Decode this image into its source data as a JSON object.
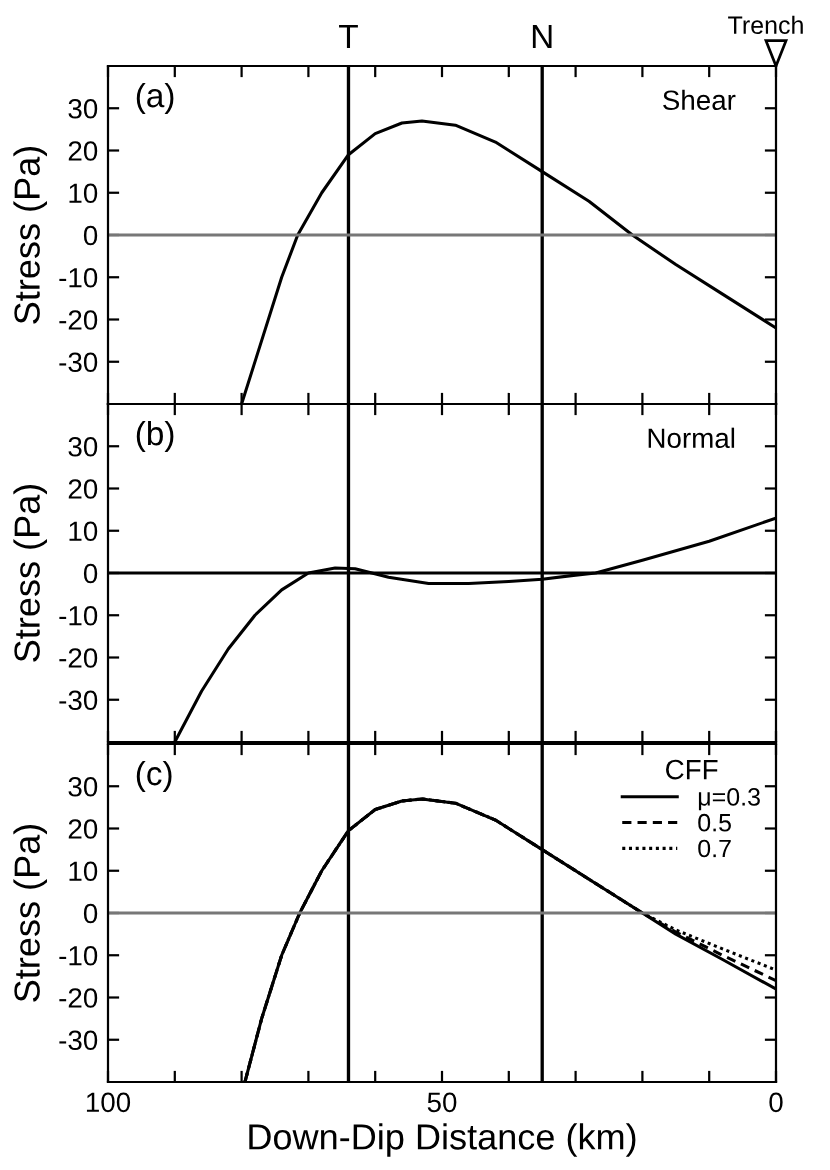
{
  "chart_data": [
    {
      "type": "line",
      "annotations": [
        "(a)",
        "Shear",
        "Trench"
      ],
      "ylabel": "Stress (Pa)",
      "xlim": [
        100,
        0
      ],
      "ylim": [
        -40,
        40
      ],
      "xticks": [
        {
          "value": 100,
          "label": null
        },
        {
          "value": 90,
          "label": null
        },
        {
          "value": 80,
          "label": null
        },
        {
          "value": 70,
          "label": null
        },
        {
          "value": 60,
          "label": null
        },
        {
          "value": 50,
          "label": null
        },
        {
          "value": 40,
          "label": null
        },
        {
          "value": 30,
          "label": null
        },
        {
          "value": 20,
          "label": null
        },
        {
          "value": 10,
          "label": null
        },
        {
          "value": 0,
          "label": null
        }
      ],
      "yticks": [
        -30,
        -20,
        -10,
        0,
        10,
        20,
        30
      ],
      "tick_labels": "y",
      "grid": false,
      "legend": false,
      "ref_lines": [
        {
          "axis": "x",
          "value": 64,
          "label": "T",
          "color": "#000000"
        },
        {
          "axis": "x",
          "value": 35,
          "label": "N",
          "color": "#000000"
        },
        {
          "axis": "y",
          "value": 0,
          "label": null,
          "color": "#777777"
        }
      ],
      "series": [
        {
          "color": "#000000",
          "line_style": "solid",
          "x": [
            80,
            77,
            74,
            71.6,
            68,
            64,
            60,
            56,
            53,
            48,
            42,
            35,
            28,
            21.5,
            15,
            8,
            0
          ],
          "values": [
            -40,
            -25,
            -10,
            0,
            10,
            19,
            24,
            26.5,
            27,
            26,
            22,
            15,
            8,
            0,
            -7,
            -14,
            -22
          ]
        }
      ]
    },
    {
      "type": "line",
      "annotations": [
        "(b)",
        "Normal"
      ],
      "ylabel": "Stress (Pa)",
      "xlim": [
        100,
        0
      ],
      "ylim": [
        -40,
        40
      ],
      "xticks": [
        {
          "value": 100,
          "label": null
        },
        {
          "value": 90,
          "label": null
        },
        {
          "value": 80,
          "label": null
        },
        {
          "value": 70,
          "label": null
        },
        {
          "value": 60,
          "label": null
        },
        {
          "value": 50,
          "label": null
        },
        {
          "value": 40,
          "label": null
        },
        {
          "value": 30,
          "label": null
        },
        {
          "value": 20,
          "label": null
        },
        {
          "value": 10,
          "label": null
        },
        {
          "value": 0,
          "label": null
        }
      ],
      "yticks": [
        -30,
        -20,
        -10,
        0,
        10,
        20,
        30
      ],
      "tick_labels": "y",
      "grid": false,
      "legend": false,
      "ref_lines": [
        {
          "axis": "x",
          "value": 64,
          "label": null,
          "color": "#000000"
        },
        {
          "axis": "x",
          "value": 35,
          "label": null,
          "color": "#000000"
        },
        {
          "axis": "y",
          "value": 0,
          "label": null,
          "color": "#000000"
        }
      ],
      "series": [
        {
          "color": "#000000",
          "line_style": "solid",
          "x": [
            90,
            86,
            82,
            78,
            74,
            70,
            66,
            63,
            58,
            52,
            46,
            40,
            35,
            30,
            27,
            20,
            10,
            0
          ],
          "values": [
            -40,
            -28,
            -18,
            -10,
            -4,
            0,
            1.2,
            1,
            -1,
            -2.5,
            -2.5,
            -2,
            -1.5,
            -0.5,
            0,
            3,
            7.5,
            13
          ]
        }
      ]
    },
    {
      "type": "line",
      "annotations": [
        "(c)"
      ],
      "legend_title": "CFF",
      "ylabel": "Stress (Pa)",
      "xlabel": "Down-Dip Distance (km)",
      "xlim": [
        100,
        0
      ],
      "ylim": [
        -40,
        40
      ],
      "xticks": [
        100,
        {
          "value": 90,
          "label": null
        },
        {
          "value": 80,
          "label": null
        },
        {
          "value": 70,
          "label": null
        },
        {
          "value": 60,
          "label": null
        },
        50,
        {
          "value": 40,
          "label": null
        },
        {
          "value": 30,
          "label": null
        },
        {
          "value": 20,
          "label": null
        },
        {
          "value": 10,
          "label": null
        },
        0
      ],
      "yticks": [
        -30,
        -20,
        -10,
        0,
        10,
        20,
        30
      ],
      "grid": false,
      "legend": "top right",
      "ref_lines": [
        {
          "axis": "x",
          "value": 64,
          "label": null,
          "color": "#000000"
        },
        {
          "axis": "x",
          "value": 35,
          "label": null,
          "color": "#000000"
        },
        {
          "axis": "y",
          "value": 0,
          "label": null,
          "color": "#777777"
        }
      ],
      "series": [
        {
          "name": "μ=0.3",
          "color": "#000000",
          "line_style": "solid",
          "x": [
            79.5,
            77,
            74,
            71.3,
            68,
            64,
            60,
            56,
            53,
            48,
            42,
            35,
            28,
            20,
            15,
            8,
            0
          ],
          "values": [
            -40,
            -25,
            -10,
            0,
            10,
            19.5,
            24.5,
            26.5,
            27,
            26,
            22,
            15,
            8,
            0,
            -5,
            -11,
            -18
          ]
        },
        {
          "name": "0.5",
          "color": "#000000",
          "line_style": "dashed",
          "x": [
            79.5,
            77,
            74,
            71.3,
            68,
            64,
            60,
            56,
            53,
            48,
            42,
            35,
            28,
            20,
            15,
            8,
            0
          ],
          "values": [
            -40,
            -25,
            -10,
            0,
            10,
            19.5,
            24.5,
            26.5,
            27,
            26,
            22,
            15,
            8,
            0,
            -4.5,
            -10,
            -16
          ]
        },
        {
          "name": "0.7",
          "color": "#000000",
          "line_style": "dotted",
          "x": [
            79.5,
            77,
            74,
            71.3,
            68,
            64,
            60,
            56,
            53,
            48,
            42,
            35,
            28,
            20,
            15,
            8,
            0
          ],
          "values": [
            -40,
            -25,
            -10,
            0,
            10,
            19.5,
            24.5,
            26.5,
            27,
            26,
            22,
            15,
            8,
            0,
            -4,
            -8.5,
            -13.5
          ]
        }
      ]
    }
  ]
}
